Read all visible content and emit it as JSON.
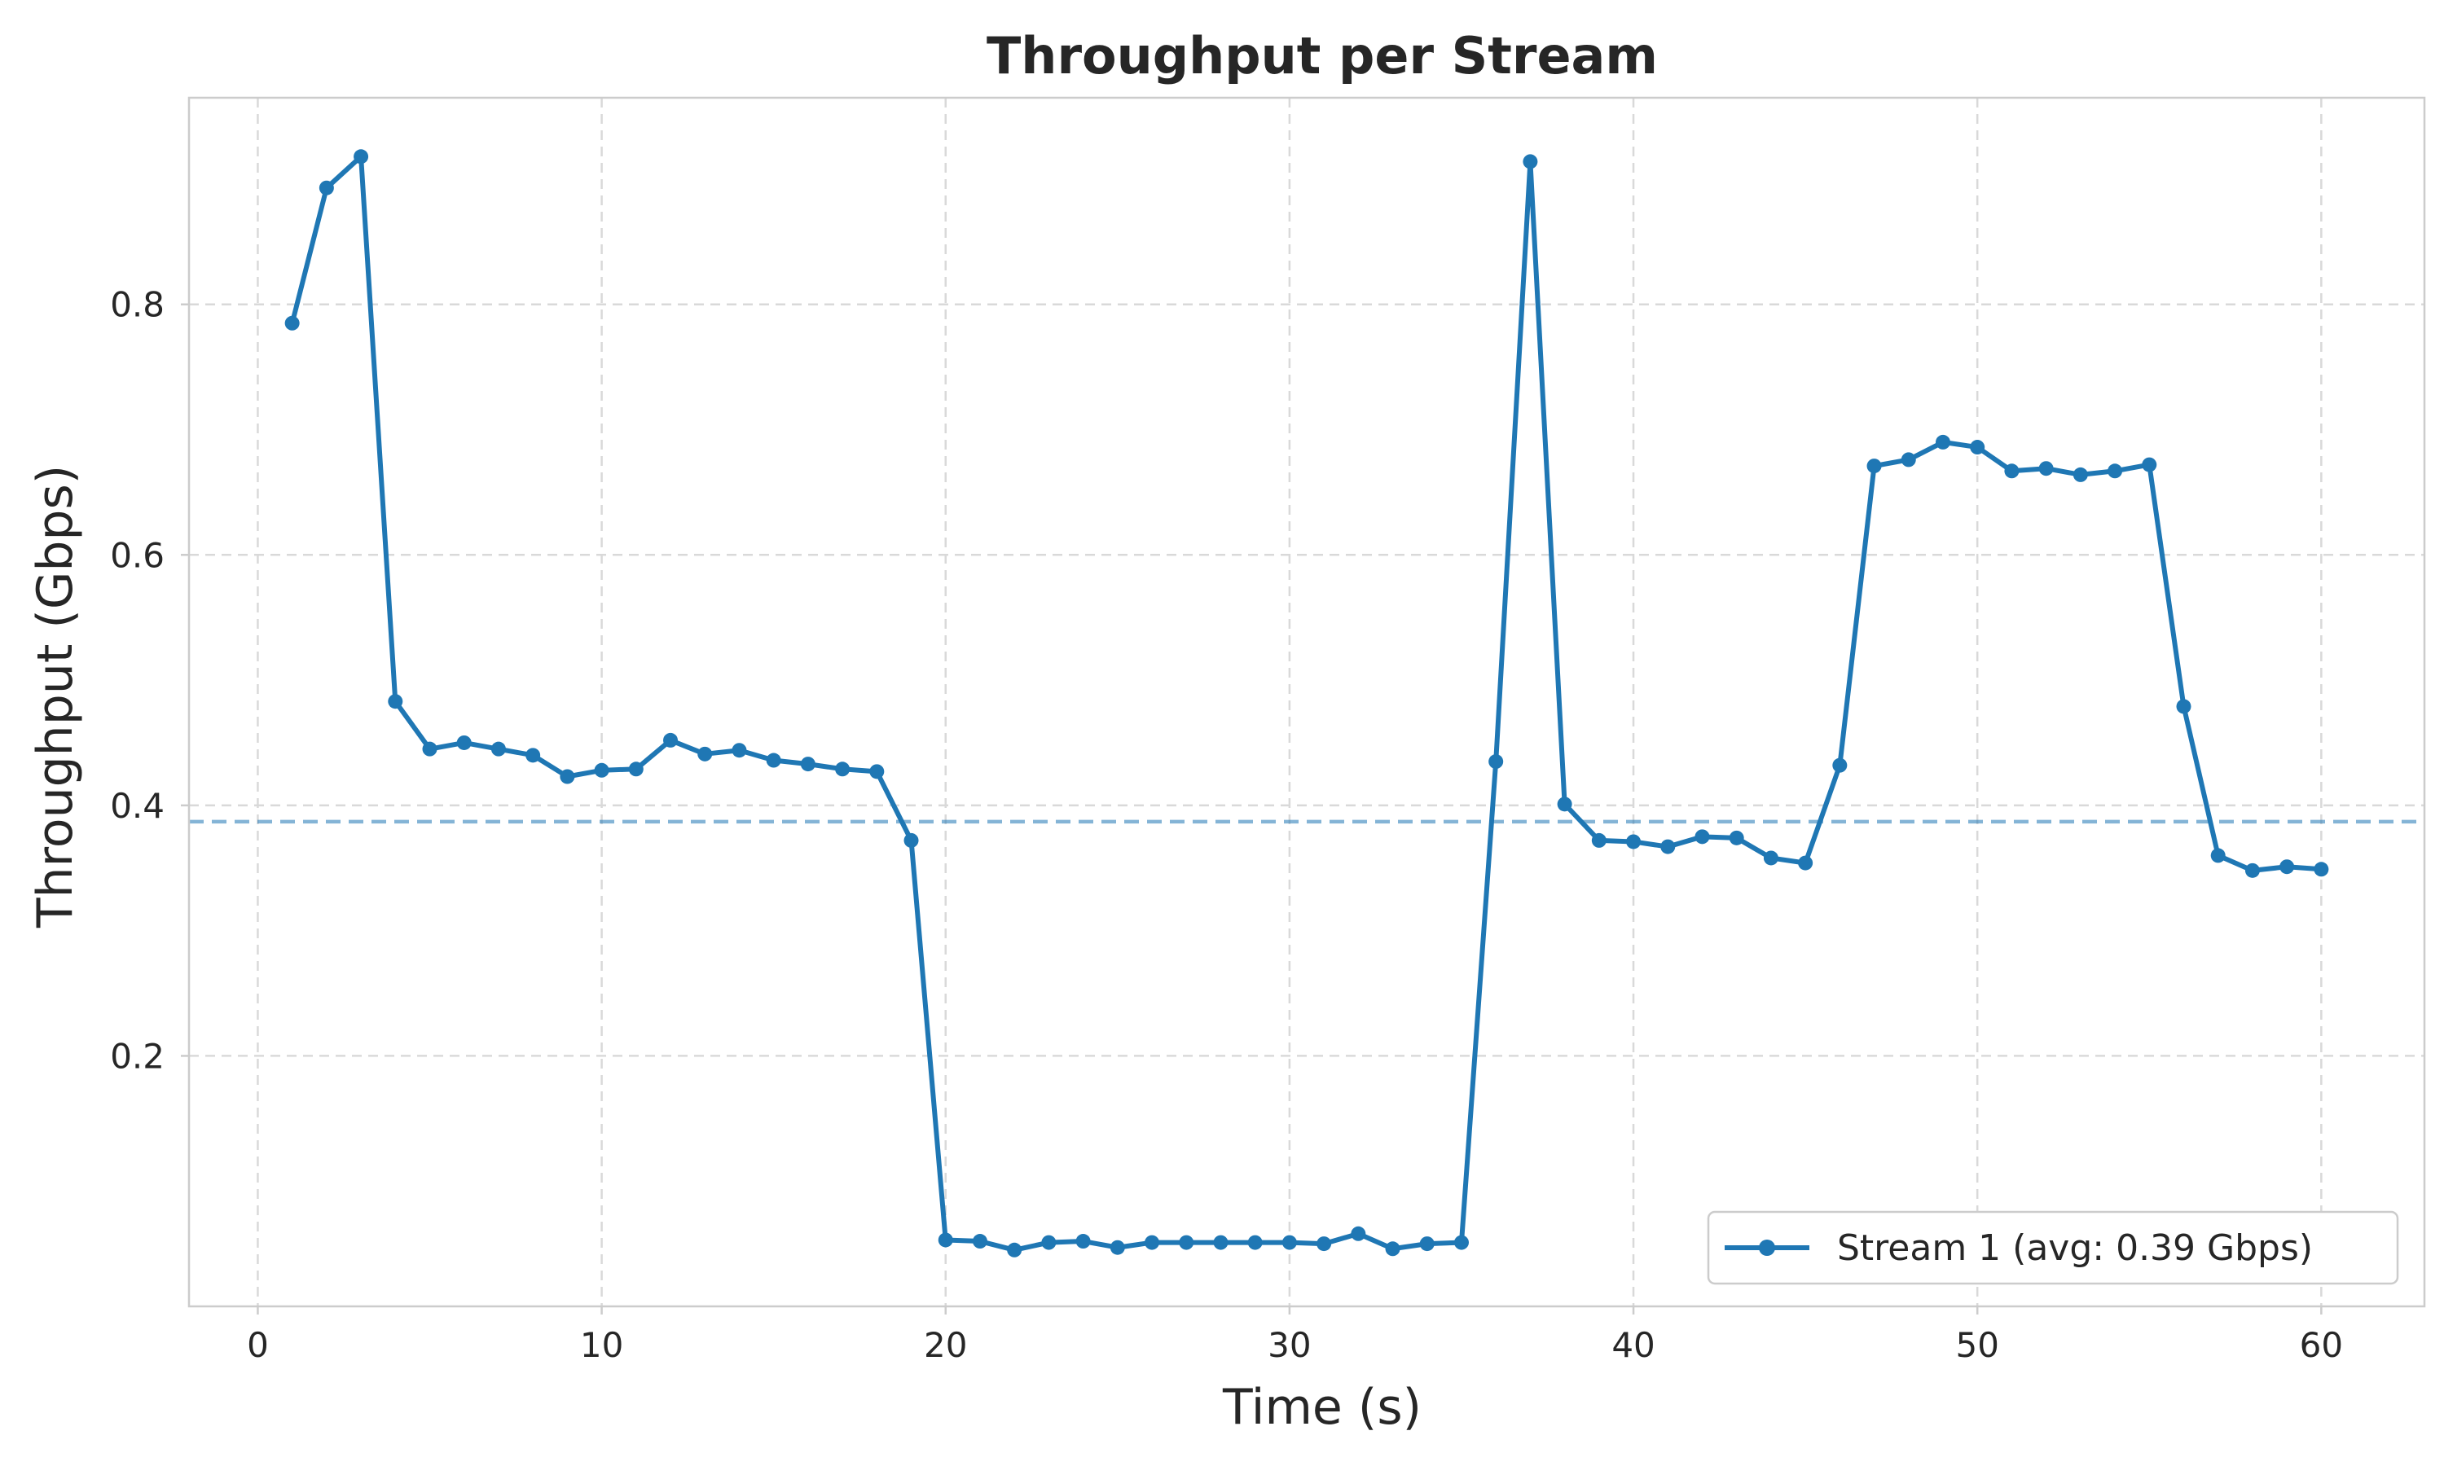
{
  "chart_data": {
    "type": "line",
    "title": "Throughput per Stream",
    "xlabel": "Time (s)",
    "ylabel": "Throughput (Gbps)",
    "xlim": [
      -2,
      63
    ],
    "ylim": [
      0.0,
      0.965
    ],
    "xticks": [
      0,
      10,
      20,
      30,
      40,
      50,
      60
    ],
    "xtick_labels": [
      "0",
      "10",
      "20",
      "30",
      "40",
      "50",
      "60"
    ],
    "yticks": [
      0.2,
      0.4,
      0.6,
      0.8
    ],
    "ytick_labels": [
      "0.2",
      "0.4",
      "0.6",
      "0.8"
    ],
    "grid": true,
    "legend_position": "bottom-right",
    "series": [
      {
        "name": "Stream 1 (avg: 0.39 Gbps)",
        "color": "#1f77b4",
        "marker": "circle",
        "x": [
          1,
          2,
          3,
          4,
          5,
          6,
          7,
          8,
          9,
          10,
          11,
          12,
          13,
          14,
          15,
          16,
          17,
          18,
          19,
          20,
          21,
          22,
          23,
          24,
          25,
          26,
          27,
          28,
          29,
          30,
          31,
          32,
          33,
          34,
          35,
          36,
          37,
          38,
          39,
          40,
          41,
          42,
          43,
          44,
          45,
          46,
          47,
          48,
          49,
          50,
          51,
          52,
          53,
          54,
          55,
          56,
          57,
          58,
          59,
          60
        ],
        "y": [
          0.785,
          0.893,
          0.918,
          0.483,
          0.445,
          0.45,
          0.445,
          0.44,
          0.423,
          0.428,
          0.429,
          0.452,
          0.441,
          0.444,
          0.436,
          0.433,
          0.429,
          0.427,
          0.372,
          0.053,
          0.052,
          0.045,
          0.051,
          0.052,
          0.047,
          0.051,
          0.051,
          0.051,
          0.051,
          0.051,
          0.05,
          0.058,
          0.046,
          0.05,
          0.051,
          0.435,
          0.914,
          0.401,
          0.372,
          0.371,
          0.367,
          0.375,
          0.374,
          0.358,
          0.354,
          0.432,
          0.671,
          0.676,
          0.69,
          0.686,
          0.667,
          0.669,
          0.664,
          0.667,
          0.672,
          0.479,
          0.36,
          0.348,
          0.351,
          0.349
        ]
      }
    ],
    "reference_lines": [
      {
        "orientation": "horizontal",
        "y": 0.387,
        "color": "#1f77b4",
        "style": "dashed"
      }
    ]
  }
}
